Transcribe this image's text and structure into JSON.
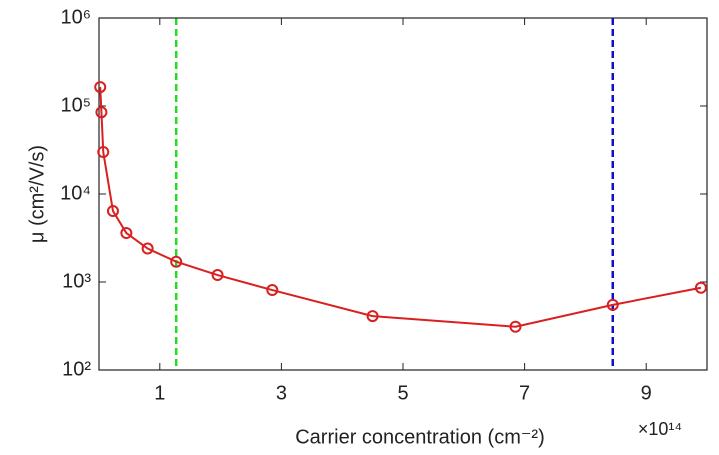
{
  "chart_data": {
    "type": "line",
    "xlabel": "Carrier concentration (cm⁻²)",
    "ylabel": "μ (cm²/V/s)",
    "x_multiplier": "×10¹⁴",
    "xlim": [
      0,
      10
    ],
    "xticks": [
      1,
      3,
      5,
      7,
      9
    ],
    "ylim": [
      100,
      1000000
    ],
    "log_y": true,
    "yticks": [
      {
        "value": 100,
        "label": "10²"
      },
      {
        "value": 1000,
        "label": "10³"
      },
      {
        "value": 10000,
        "label": "10⁴"
      },
      {
        "value": 100000,
        "label": "10⁵"
      },
      {
        "value": 1000000,
        "label": "10⁶"
      }
    ],
    "series": [
      {
        "color": "#d92020",
        "x": [
          0.02,
          0.04,
          0.07,
          0.23,
          0.45,
          0.8,
          1.27,
          1.95,
          2.85,
          4.5,
          6.85,
          8.45,
          9.9
        ],
        "values": [
          164000,
          85000,
          30000,
          6400,
          3600,
          2400,
          1700,
          1200,
          810,
          410,
          310,
          550,
          860
        ]
      }
    ],
    "vlines": [
      {
        "x": 1.27,
        "color": "#22dd22"
      },
      {
        "x": 8.45,
        "color": "#1010cc"
      }
    ]
  }
}
